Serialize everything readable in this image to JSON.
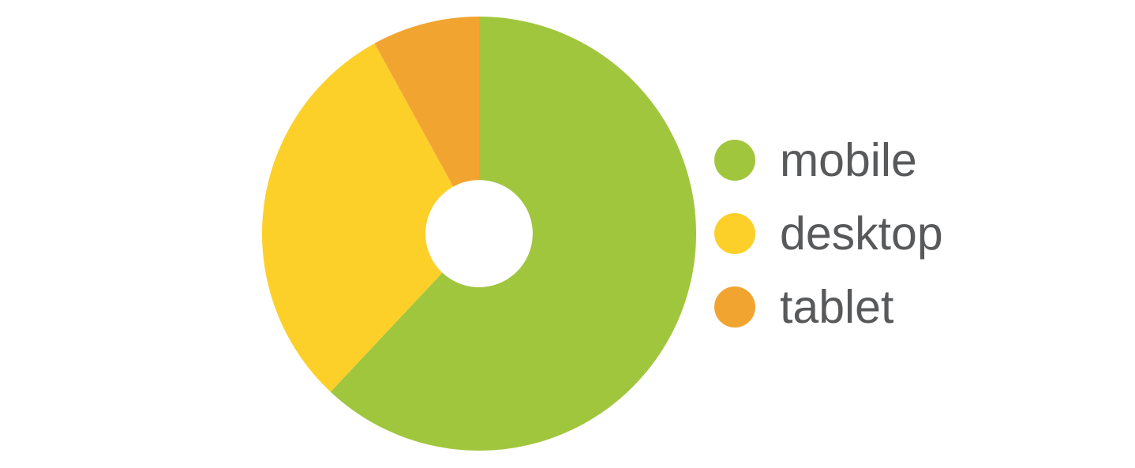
{
  "chart_data": {
    "type": "pie",
    "subtype": "donut",
    "title": "",
    "categories": [
      "mobile",
      "desktop",
      "tablet"
    ],
    "values": [
      62,
      30,
      8
    ],
    "unit": "percent (estimated from slice angles)",
    "colors": [
      "#a0c63e",
      "#fcd029",
      "#f2a431"
    ],
    "legend_position": "right",
    "start_angle_deg": 0,
    "direction": "clockwise",
    "inner_radius_ratio": 0.247,
    "grid": "off"
  },
  "style": {
    "background": "#ffffff",
    "legend_text_color": "#58595b"
  }
}
